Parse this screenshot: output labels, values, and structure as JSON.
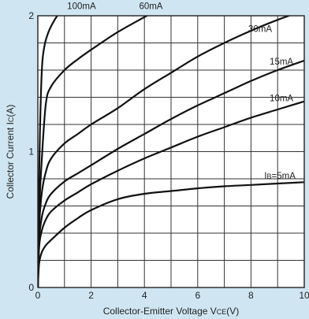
{
  "chart_data": {
    "type": "line",
    "title": "",
    "xlabel": "Collector-Emitter Voltage VCE(V)",
    "xlabel_parts": {
      "main": "Collector-Emitter Voltage V",
      "sub": "CE",
      "tail": "(V)"
    },
    "ylabel": "Collector Current IC(A)",
    "ylabel_parts": {
      "main": "Collector Current I",
      "sub": "C",
      "tail": "(A)"
    },
    "xlim": [
      0,
      10
    ],
    "ylim": [
      0,
      2
    ],
    "x_ticks": [
      0,
      2,
      4,
      6,
      8,
      10
    ],
    "x_tick_labels": [
      "0",
      "2",
      "4",
      "6",
      "8",
      "10"
    ],
    "y_ticks": [
      0,
      1,
      2
    ],
    "y_tick_labels": [
      "0",
      "1",
      "2"
    ],
    "grid": true,
    "colors": {
      "background": "#cfe6f2",
      "plot_area": "#ffffff",
      "curve": "#111111",
      "grid": "#333333"
    },
    "series": [
      {
        "name": "IB=5mA",
        "label_parts": {
          "main": "I",
          "sub": "B",
          "tail": "=5mA"
        },
        "x": [
          0,
          0.05,
          0.15,
          0.3,
          0.5,
          1.0,
          1.5,
          2,
          3,
          4,
          5,
          6,
          7,
          8,
          9,
          10
        ],
        "y": [
          0,
          0.18,
          0.26,
          0.31,
          0.35,
          0.44,
          0.51,
          0.57,
          0.65,
          0.69,
          0.71,
          0.73,
          0.745,
          0.755,
          0.765,
          0.775
        ]
      },
      {
        "name": "10mA",
        "x": [
          0,
          0.05,
          0.15,
          0.3,
          0.5,
          1.0,
          1.5,
          2,
          3,
          4,
          5,
          6,
          7,
          8,
          9,
          10
        ],
        "y": [
          0,
          0.3,
          0.42,
          0.5,
          0.56,
          0.64,
          0.7,
          0.76,
          0.86,
          0.95,
          1.03,
          1.11,
          1.18,
          1.25,
          1.31,
          1.37
        ]
      },
      {
        "name": "15mA",
        "x": [
          0,
          0.05,
          0.15,
          0.3,
          0.5,
          1.0,
          1.5,
          2,
          3,
          4,
          5,
          6,
          7,
          8,
          9,
          10
        ],
        "y": [
          0,
          0.35,
          0.52,
          0.62,
          0.69,
          0.78,
          0.84,
          0.9,
          1.02,
          1.13,
          1.24,
          1.34,
          1.43,
          1.52,
          1.6,
          1.67
        ]
      },
      {
        "name": "30mA",
        "x": [
          0,
          0.05,
          0.15,
          0.3,
          0.5,
          1.0,
          1.5,
          2,
          3,
          4,
          5,
          6,
          7,
          8,
          9,
          10
        ],
        "y": [
          0,
          0.45,
          0.7,
          0.85,
          0.95,
          1.06,
          1.13,
          1.2,
          1.32,
          1.46,
          1.58,
          1.7,
          1.8,
          1.89,
          1.97,
          2.04
        ]
      },
      {
        "name": "60mA",
        "x": [
          0,
          0.05,
          0.15,
          0.3,
          0.5,
          1.0,
          1.5,
          2,
          3,
          4,
          4.3
        ],
        "y": [
          0,
          0.55,
          0.95,
          1.35,
          1.48,
          1.6,
          1.68,
          1.75,
          1.88,
          1.99,
          2.02
        ]
      },
      {
        "name": "100mA",
        "x": [
          0,
          0.03,
          0.08,
          0.15,
          0.25,
          0.4,
          0.6,
          0.8
        ],
        "y": [
          0,
          0.6,
          1.15,
          1.6,
          1.78,
          1.88,
          1.96,
          2.02
        ]
      }
    ],
    "label_positions": [
      {
        "series": "IB=5mA",
        "x": 8.5,
        "y": 0.8
      },
      {
        "series": "10mA",
        "x": 8.7,
        "y": 1.37
      },
      {
        "series": "15mA",
        "x": 8.7,
        "y": 1.64
      },
      {
        "series": "30mA",
        "x": 7.9,
        "y": 1.88
      },
      {
        "series": "60mA",
        "x": 3.8,
        "y": 2.05
      },
      {
        "series": "100mA",
        "x": 1.1,
        "y": 2.05
      }
    ]
  }
}
